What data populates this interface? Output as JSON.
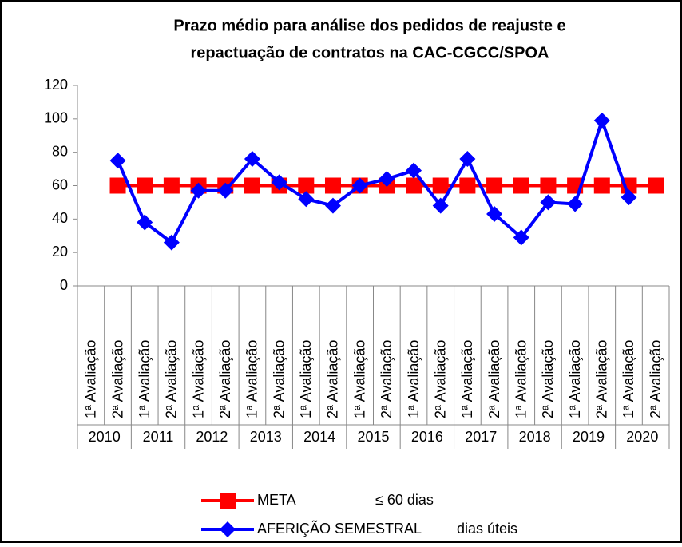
{
  "chart_data": {
    "type": "line",
    "title": [
      "Prazo médio para análise dos pedidos de reajuste e",
      "repactuação de contratos na CAC-CGCC/SPOA"
    ],
    "categories": [
      "1ª Avaliação",
      "2ª Avaliação",
      "1ª Avaliação",
      "2ª Avaliação",
      "1ª Avaliação",
      "2ª Avaliação",
      "1ª Avaliação",
      "2ª Avaliação",
      "1ª Avaliação",
      "2ª Avaliação",
      "1ª Avaliação",
      "2ª Avaliação",
      "1ª Avaliação",
      "2ª Avaliação",
      "1ª Avaliação",
      "2ª Avaliação",
      "1ª Avaliação",
      "2ª Avaliação",
      "1ª Avaliação",
      "2ª Avaliação",
      "1ª Avaliação",
      "2ª Avaliação"
    ],
    "years": [
      "2010",
      "2011",
      "2012",
      "2013",
      "2014",
      "2015",
      "2016",
      "2017",
      "2018",
      "2019",
      "2020"
    ],
    "series": [
      {
        "name": "META",
        "note": "≤ 60 dias",
        "color": "#ff0000",
        "marker": "square",
        "values": [
          null,
          60,
          60,
          60,
          60,
          60,
          60,
          60,
          60,
          60,
          60,
          60,
          60,
          60,
          60,
          60,
          60,
          60,
          60,
          60,
          60,
          60
        ]
      },
      {
        "name": "AFERIÇÃO SEMESTRAL",
        "note": "dias úteis",
        "color": "#0000ff",
        "marker": "diamond",
        "values": [
          null,
          75,
          38,
          26,
          57,
          57,
          76,
          62,
          52,
          48,
          60,
          64,
          69,
          48,
          76,
          43,
          29,
          50,
          49,
          99,
          53,
          null
        ]
      }
    ],
    "ylim": [
      0,
      120
    ],
    "yticks": [
      0,
      20,
      40,
      60,
      80,
      100,
      120
    ],
    "grid": false
  }
}
